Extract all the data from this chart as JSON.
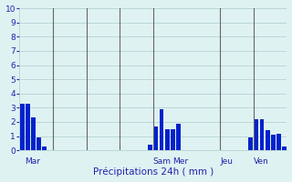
{
  "title": "",
  "xlabel": "Précipitations 24h ( mm )",
  "ylabel": "",
  "ylim": [
    0,
    10
  ],
  "yticks": [
    0,
    1,
    2,
    3,
    4,
    5,
    6,
    7,
    8,
    9,
    10
  ],
  "bg_color": "#dff2f2",
  "bar_color": "#0022cc",
  "grid_color": "#aacccc",
  "xlabel_color": "#2222aa",
  "tick_color": "#2222aa",
  "day_label_color": "#2222aa",
  "vline_color": "#666666",
  "num_slots": 48,
  "bar_heights": [
    3.3,
    3.3,
    2.3,
    0.9,
    0.3,
    0.0,
    0.0,
    0.0,
    0.0,
    0.0,
    0.0,
    0.0,
    0.0,
    0.0,
    0.0,
    0.0,
    0.0,
    0.0,
    0.0,
    0.0,
    0.0,
    0.0,
    0.0,
    0.4,
    1.7,
    2.9,
    1.5,
    1.5,
    1.9,
    0.0,
    0.0,
    0.0,
    0.0,
    0.0,
    0.0,
    0.0,
    0.0,
    0.0,
    0.0,
    0.0,
    0.0,
    0.9,
    2.2,
    2.2,
    1.4,
    1.1,
    1.15,
    0.3
  ],
  "day_labels": [
    "Mar",
    "Sam",
    "Mer",
    "Jeu",
    "Ven"
  ]
}
